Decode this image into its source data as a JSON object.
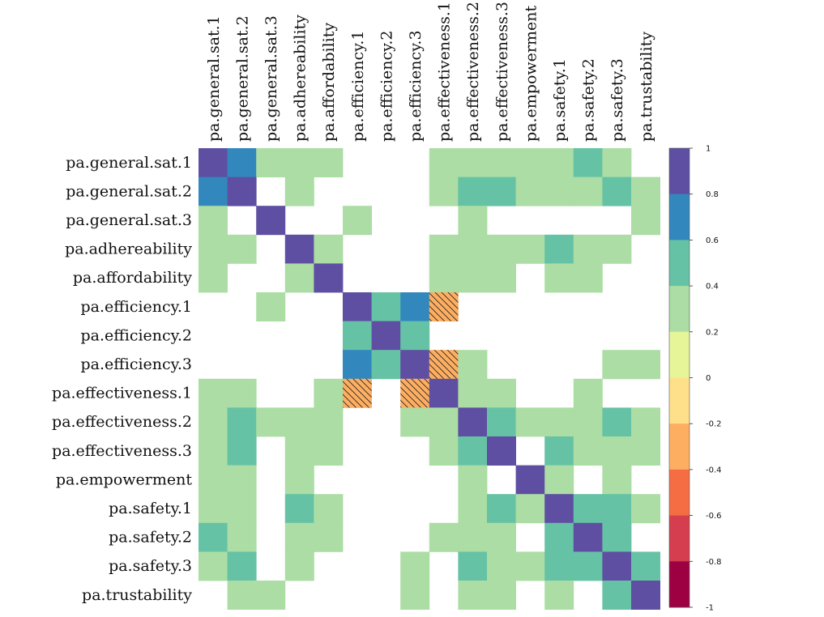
{
  "chart_data": {
    "type": "heatmap",
    "variables": [
      "pa.general.sat.1",
      "pa.general.sat.2",
      "pa.general.sat.3",
      "pa.adhereability",
      "pa.affordability",
      "pa.efficiency.1",
      "pa.efficiency.2",
      "pa.efficiency.3",
      "pa.effectiveness.1",
      "pa.effectiveness.2",
      "pa.effectiveness.3",
      "pa.empowerment",
      "pa.safety.1",
      "pa.safety.2",
      "pa.safety.3",
      "pa.trustability"
    ],
    "matrix": [
      [
        1,
        0.7,
        0.3,
        0.3,
        0.3,
        null,
        null,
        null,
        0.3,
        0.3,
        0.3,
        0.3,
        0.3,
        0.5,
        0.3,
        null
      ],
      [
        0.7,
        1,
        null,
        0.3,
        null,
        null,
        null,
        null,
        0.3,
        0.5,
        0.5,
        0.3,
        0.3,
        0.3,
        0.5,
        0.3
      ],
      [
        0.3,
        null,
        1,
        null,
        null,
        0.3,
        null,
        null,
        null,
        0.3,
        null,
        null,
        null,
        null,
        null,
        0.3
      ],
      [
        0.3,
        0.3,
        null,
        1,
        0.3,
        null,
        null,
        null,
        0.3,
        0.3,
        0.3,
        0.3,
        0.5,
        0.3,
        0.3,
        null
      ],
      [
        0.3,
        null,
        null,
        0.3,
        1,
        null,
        null,
        null,
        0.3,
        0.3,
        0.3,
        null,
        0.3,
        0.3,
        null,
        null
      ],
      [
        null,
        null,
        0.3,
        null,
        null,
        1,
        0.5,
        0.7,
        -0.35,
        null,
        null,
        null,
        null,
        null,
        null,
        null
      ],
      [
        null,
        null,
        null,
        null,
        null,
        0.5,
        1,
        0.5,
        null,
        null,
        null,
        null,
        null,
        null,
        null,
        null
      ],
      [
        null,
        null,
        null,
        null,
        null,
        0.7,
        0.5,
        1,
        -0.35,
        0.3,
        null,
        null,
        null,
        null,
        0.3,
        0.3
      ],
      [
        0.3,
        0.3,
        null,
        null,
        0.3,
        -0.35,
        null,
        -0.35,
        1,
        0.3,
        0.3,
        null,
        null,
        0.3,
        null,
        null
      ],
      [
        0.3,
        0.5,
        0.3,
        0.3,
        0.3,
        null,
        null,
        0.3,
        0.3,
        1,
        0.5,
        0.3,
        0.3,
        0.3,
        0.5,
        0.3
      ],
      [
        0.3,
        0.5,
        null,
        0.3,
        0.3,
        null,
        null,
        null,
        0.3,
        0.5,
        1,
        null,
        0.5,
        0.3,
        0.3,
        0.3
      ],
      [
        0.3,
        0.3,
        null,
        0.3,
        null,
        null,
        null,
        null,
        null,
        0.3,
        null,
        1,
        0.3,
        null,
        0.3,
        null
      ],
      [
        0.3,
        0.3,
        null,
        0.5,
        0.3,
        null,
        null,
        null,
        null,
        0.3,
        0.5,
        0.3,
        1,
        0.5,
        0.5,
        0.3
      ],
      [
        0.5,
        0.3,
        null,
        0.3,
        0.3,
        null,
        null,
        null,
        0.3,
        0.3,
        0.3,
        null,
        0.5,
        1,
        0.5,
        null
      ],
      [
        0.3,
        0.5,
        null,
        0.3,
        null,
        null,
        null,
        0.3,
        null,
        0.5,
        0.3,
        0.3,
        0.5,
        0.5,
        1,
        0.5
      ],
      [
        null,
        0.3,
        0.3,
        null,
        null,
        null,
        null,
        0.3,
        null,
        0.3,
        0.3,
        null,
        0.3,
        null,
        0.5,
        1
      ]
    ],
    "colorbar": {
      "range": [
        -1,
        1
      ],
      "ticks": [
        1,
        0.8,
        0.6,
        0.4,
        0.2,
        0,
        -0.2,
        -0.4,
        -0.6,
        -0.8,
        -1
      ],
      "tick_labels": [
        "1",
        "0.8",
        "0.6",
        "0.4",
        "0.2",
        "0",
        "-0.2",
        "-0.4",
        "-0.6",
        "-0.8",
        "-1"
      ],
      "colors": [
        "#5e4fa2",
        "#3288bd",
        "#66c2a5",
        "#abdda4",
        "#e6f598",
        "#fee08b",
        "#fdae61",
        "#f46d43",
        "#d53e4f",
        "#9e0142"
      ]
    },
    "negative_cells_hatched": true
  }
}
